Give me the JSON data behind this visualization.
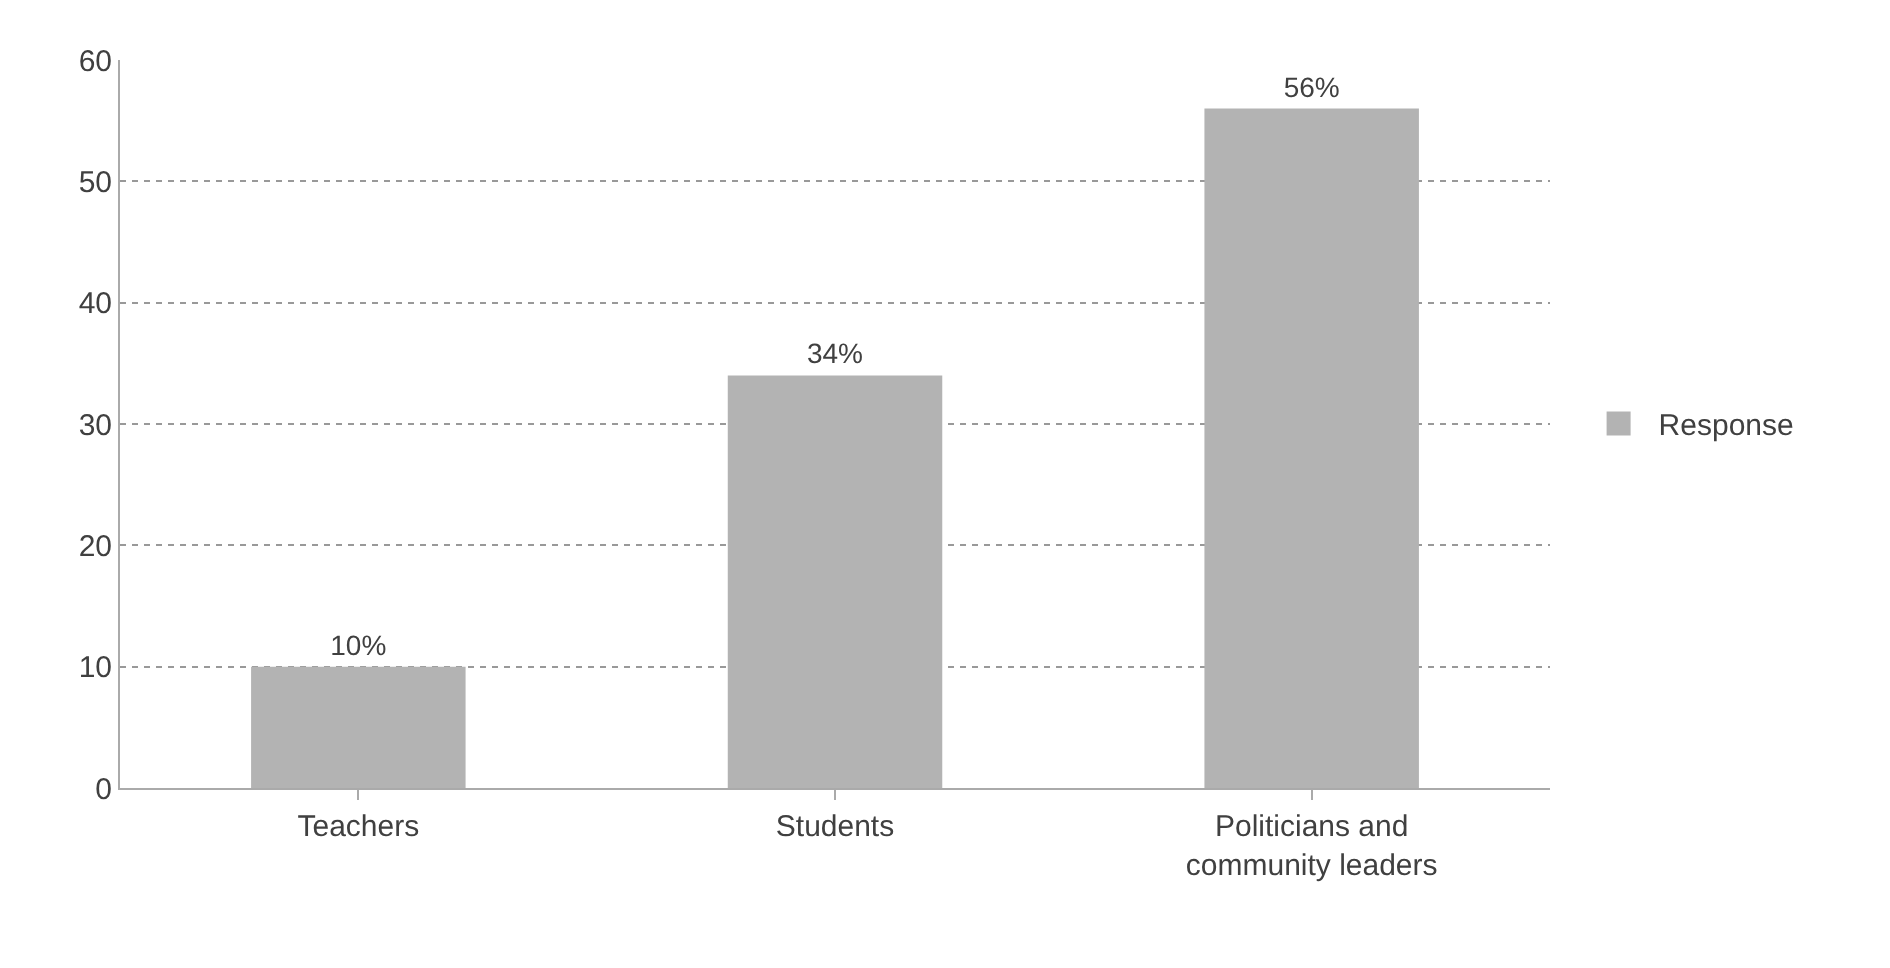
{
  "chart_data": {
    "type": "bar",
    "categories": [
      "Teachers",
      "Students",
      "Politicians and community leaders"
    ],
    "series": [
      {
        "name": "Response",
        "color": "#b3b3b3",
        "values": [
          10,
          34,
          56
        ],
        "value_labels": [
          "10%",
          "34%",
          "56%"
        ]
      }
    ],
    "ylim": [
      0,
      60
    ],
    "yticks": [
      0,
      10,
      20,
      30,
      40,
      50,
      60
    ],
    "grid": "y",
    "legend": "right"
  }
}
